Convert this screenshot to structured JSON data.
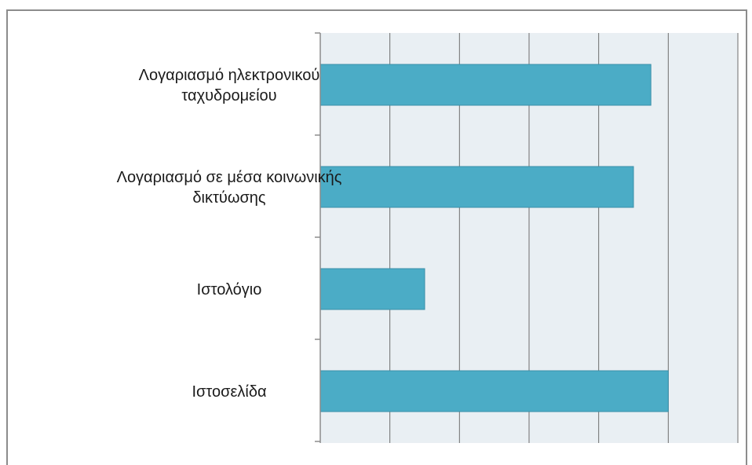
{
  "chart_data": {
    "type": "bar",
    "orientation": "horizontal",
    "categories": [
      [
        "Λογαριασμό ηλεκτρονικού",
        "ταχυδρομείου"
      ],
      [
        "Λογαριασμό σε μέσα κοινωνικής",
        "δικτύωσης"
      ],
      [
        "Ιστολόγιο"
      ],
      [
        "Ιστοσελίδα"
      ]
    ],
    "values": [
      4.75,
      4.5,
      1.5,
      5.0
    ],
    "xlim": [
      0,
      6
    ],
    "title": "",
    "xlabel": "",
    "ylabel": "",
    "grid": "vertical",
    "legend": "none",
    "colors": {
      "bar": "#4bacc6",
      "bar_edge": "#3a8fa8",
      "plot_bg": "#e9eff3",
      "grid": "#6e6e6e",
      "axis": "#8c8c8c"
    }
  }
}
